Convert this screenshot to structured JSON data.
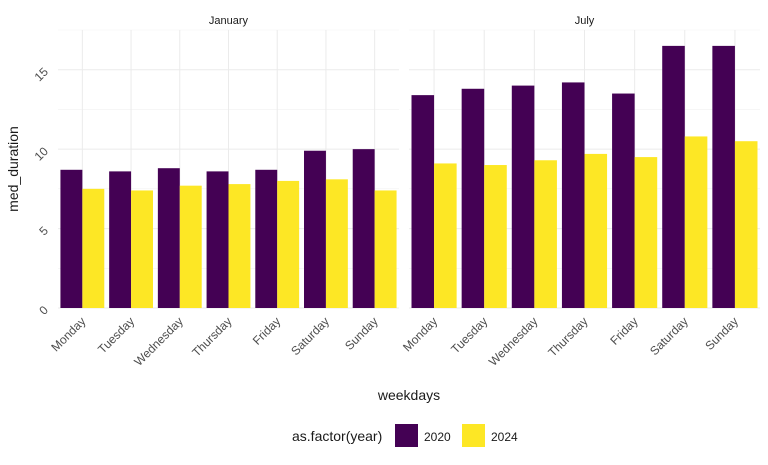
{
  "chart_data": {
    "type": "bar",
    "facet_labels": [
      "January",
      "July"
    ],
    "categories": [
      "Monday",
      "Tuesday",
      "Wednesday",
      "Thursday",
      "Friday",
      "Saturday",
      "Sunday"
    ],
    "facets": [
      {
        "label": "January",
        "series": [
          {
            "name": "2020",
            "values": [
              8.7,
              8.6,
              8.8,
              8.6,
              8.7,
              9.9,
              10.0
            ]
          },
          {
            "name": "2024",
            "values": [
              7.5,
              7.4,
              7.7,
              7.8,
              8.0,
              8.1,
              7.4
            ]
          }
        ]
      },
      {
        "label": "July",
        "series": [
          {
            "name": "2020",
            "values": [
              13.4,
              13.8,
              14.0,
              14.2,
              13.5,
              16.5,
              16.5
            ]
          },
          {
            "name": "2024",
            "values": [
              9.1,
              9.0,
              9.3,
              9.7,
              9.5,
              10.8,
              10.5
            ]
          }
        ]
      }
    ],
    "xlabel": "weekdays",
    "ylabel": "med_duration",
    "ylim": [
      0,
      17.5
    ],
    "yticks": [
      0,
      5,
      10,
      15
    ],
    "legend_title": "as.factor(year)",
    "legend_position": "bottom",
    "grid": true,
    "colors": {
      "2020": "#440154",
      "2024": "#FDE725"
    }
  }
}
